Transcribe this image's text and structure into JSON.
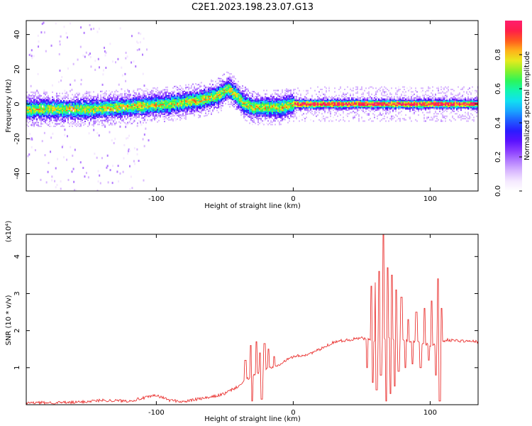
{
  "title": "C2E1.2023.198.23.07.G13",
  "colors": {
    "snr_line": "#e8201e",
    "cmap": [
      "#ffffff",
      "#f4e8ff",
      "#d9b8ff",
      "#b37cff",
      "#8a3dff",
      "#5a12ff",
      "#2a1cff",
      "#1f5cff",
      "#19a6ff",
      "#11e0f0",
      "#12f5b0",
      "#2cf55a",
      "#8af02a",
      "#e6ea1e",
      "#ffb21a",
      "#ff5a1e",
      "#ff1e4a",
      "#ff1e6e"
    ]
  },
  "chart_data": [
    {
      "type": "heatmap",
      "title": "C2E1.2023.198.23.07.G13",
      "xlabel": "Height of straight line (km)",
      "ylabel": "Frequency (Hz)",
      "xlim": [
        -195,
        135
      ],
      "ylim": [
        -50,
        48
      ],
      "xticks": [
        -100,
        0,
        100
      ],
      "xtick_labels": [
        "-100",
        "0",
        "100"
      ],
      "yticks": [
        -40,
        -20,
        0,
        20,
        40
      ],
      "ytick_labels": [
        "-40",
        "-20",
        "0",
        "20",
        "40"
      ],
      "colorbar": {
        "label": "Normalized spectral amplitude",
        "range": [
          0.0,
          1.0
        ],
        "ticks": [
          0.0,
          0.2,
          0.4,
          0.6,
          0.8
        ],
        "tick_labels": [
          "0.0",
          "0.2",
          "0.4",
          "0.6",
          "0.8"
        ]
      },
      "ridge": {
        "x": [
          -195,
          -170,
          -150,
          -130,
          -110,
          -90,
          -70,
          -55,
          -48,
          -42,
          -36,
          -30,
          -20,
          -10,
          0,
          20,
          40,
          60,
          80,
          100,
          110,
          135
        ],
        "y": [
          -3,
          -3,
          -3,
          -2,
          -1,
          0,
          2,
          5,
          9,
          5,
          0,
          -2,
          -2,
          -2,
          0,
          0,
          0,
          0,
          0,
          0,
          0,
          0
        ]
      }
    },
    {
      "type": "line",
      "xlabel": "Height of straight line (km)",
      "ylabel": "SNR (10 * v/v)",
      "y_scale_label": "(x10⁴)",
      "xlim": [
        -195,
        135
      ],
      "ylim": [
        0,
        4.6
      ],
      "xticks": [
        -100,
        0,
        100
      ],
      "xtick_labels": [
        "-100",
        "0",
        "100"
      ],
      "yticks": [
        1,
        2,
        3,
        4
      ],
      "ytick_labels": [
        "1",
        "2",
        "3",
        "4"
      ],
      "series": [
        {
          "name": "SNR",
          "x": [
            -195,
            -160,
            -140,
            -120,
            -100,
            -90,
            -80,
            -70,
            -60,
            -50,
            -40,
            -30,
            -20,
            -10,
            0,
            10,
            20,
            30,
            40,
            50,
            60,
            70,
            80,
            90,
            100,
            108,
            112,
            120,
            135
          ],
          "y": [
            0.05,
            0.06,
            0.12,
            0.1,
            0.25,
            0.12,
            0.08,
            0.15,
            0.2,
            0.3,
            0.5,
            0.8,
            0.95,
            1.1,
            1.3,
            1.35,
            1.5,
            1.7,
            1.75,
            1.8,
            1.7,
            1.8,
            1.75,
            1.7,
            1.6,
            1.7,
            1.75,
            1.73,
            1.7
          ]
        }
      ],
      "spikes": [
        {
          "x": -35,
          "y": 1.2
        },
        {
          "x": -31,
          "y": 1.6
        },
        {
          "x": -27,
          "y": 1.7
        },
        {
          "x": -24,
          "y": 1.4
        },
        {
          "x": -21,
          "y": 1.65
        },
        {
          "x": -18,
          "y": 1.5
        },
        {
          "x": -14,
          "y": 1.3
        },
        {
          "x": 57,
          "y": 3.2
        },
        {
          "x": 60,
          "y": 3.3
        },
        {
          "x": 63,
          "y": 3.6
        },
        {
          "x": 66,
          "y": 4.6
        },
        {
          "x": 69,
          "y": 3.7
        },
        {
          "x": 72,
          "y": 3.5
        },
        {
          "x": 75,
          "y": 3.1
        },
        {
          "x": 79,
          "y": 2.9
        },
        {
          "x": 84,
          "y": 2.3
        },
        {
          "x": 90,
          "y": 2.5
        },
        {
          "x": 96,
          "y": 2.6
        },
        {
          "x": 101,
          "y": 2.8
        },
        {
          "x": 106,
          "y": 3.4
        },
        {
          "x": 108,
          "y": 2.6
        }
      ],
      "dips": [
        {
          "x": 54,
          "y": 1.0
        },
        {
          "x": 58,
          "y": 0.6
        },
        {
          "x": 61,
          "y": 0.4
        },
        {
          "x": 64,
          "y": 0.8
        },
        {
          "x": 68,
          "y": 0.1
        },
        {
          "x": 71,
          "y": 0.3
        },
        {
          "x": 74,
          "y": 0.5
        },
        {
          "x": 77,
          "y": 0.9
        },
        {
          "x": 82,
          "y": 1.0
        },
        {
          "x": 87,
          "y": 1.1
        },
        {
          "x": 93,
          "y": 1.0
        },
        {
          "x": 99,
          "y": 1.2
        },
        {
          "x": 104,
          "y": 0.8
        },
        {
          "x": 107,
          "y": 0.1
        },
        {
          "x": -30,
          "y": 0.1
        },
        {
          "x": -23,
          "y": 0.15
        }
      ]
    }
  ]
}
